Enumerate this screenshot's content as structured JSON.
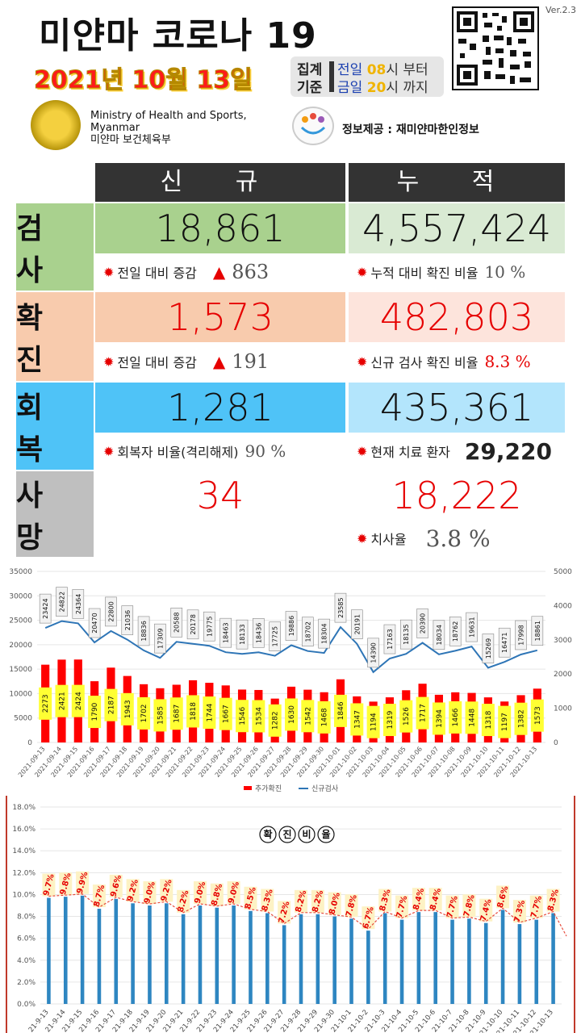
{
  "header": {
    "title": "미얀마 코로나 19",
    "date": "2021년 10월 13일",
    "basis_label_1": "집계",
    "basis_label_2": "기준",
    "basis_prev_label": "전일",
    "basis_prev_hour": "08",
    "basis_prev_suffix": "시 부터",
    "basis_today_label": "금일",
    "basis_today_hour": "20",
    "basis_today_suffix": "시 까지",
    "version": "Ver.2.3",
    "ministry_line1": "Ministry of Health and Sports,",
    "ministry_line2": "Myanmar",
    "ministry_line3": "미얀마 보건체육부",
    "provider": "정보제공 : 재미얀마한인정보"
  },
  "stats": {
    "col_new": "신 규",
    "col_cumulative": "누 적",
    "tests": {
      "label": "검 사",
      "new": "18,861",
      "cumulative": "4,557,424",
      "new_note": "전일 대비 증감",
      "new_delta": "863",
      "cum_note": "누적 대비 확진 비율",
      "cum_value": "10 %"
    },
    "confirmed": {
      "label": "확 진",
      "new": "1,573",
      "cumulative": "482,803",
      "new_note": "전일 대비 증감",
      "new_delta": "191",
      "cum_note": "신규 검사 확진 비율",
      "cum_value": "8.3 %"
    },
    "recovered": {
      "label": "회 복",
      "new": "1,281",
      "cumulative": "435,361",
      "new_note": "회복자 비율(격리해제)",
      "new_value": "90 %",
      "cum_note": "현재 치료 환자",
      "cum_value": "29,220"
    },
    "deaths": {
      "label": "사 망",
      "new": "34",
      "cumulative": "18,222",
      "cum_note": "치사율",
      "cum_value": "3.8 %"
    },
    "colors": {
      "tests_label": "#a9d18e",
      "tests_new": "#a9d18e",
      "tests_cum": "#d9ead3",
      "confirmed_label": "#f8cbad",
      "confirmed_new": "#f8cbad",
      "confirmed_cum": "#fde4dc",
      "recovered_label": "#4fc3f7",
      "recovered_new": "#4fc3f7",
      "recovered_cum": "#b3e5fc",
      "deaths_label": "#bfbfbf",
      "red_text": "#e60000"
    }
  },
  "chart_data": [
    {
      "type": "bar",
      "categories": [
        "2021-09-13",
        "2021-09-14",
        "2021-09-15",
        "2021-09-16",
        "2021-09-17",
        "2021-09-18",
        "2021-09-19",
        "2021-09-20",
        "2021-09-21",
        "2021-09-22",
        "2021-09-23",
        "2021-09-24",
        "2021-09-25",
        "2021-09-26",
        "2021-09-27",
        "2021-09-28",
        "2021-09-29",
        "2021-09-30",
        "2021-10-01",
        "2021-10-02",
        "2021-10-03",
        "2021-10-04",
        "2021-10-05",
        "2021-10-06",
        "2021-10-07",
        "2021-10-08",
        "2021-10-09",
        "2021-10-10",
        "2021-10-11",
        "2021-10-12",
        "2021-10-13"
      ],
      "series": [
        {
          "name": "추가확진",
          "axis": "right",
          "type": "bar",
          "color": "#ff0000",
          "values": [
            2273,
            2421,
            2424,
            1790,
            2187,
            1943,
            1702,
            1585,
            1687,
            1818,
            1744,
            1667,
            1546,
            1534,
            1282,
            1630,
            1542,
            1468,
            1846,
            1347,
            1194,
            1319,
            1526,
            1717,
            1394,
            1466,
            1448,
            1318,
            1197,
            1382,
            1573
          ]
        },
        {
          "name": "신규검사",
          "axis": "left",
          "type": "line",
          "color": "#2e75b6",
          "values": [
            23424,
            24822,
            24364,
            20470,
            22800,
            21036,
            18836,
            17309,
            20588,
            20178,
            19775,
            18463,
            18133,
            18436,
            17725,
            19886,
            18702,
            18304,
            23585,
            20191,
            14390,
            17163,
            18135,
            20390,
            18034,
            18762,
            19631,
            15269,
            16471,
            17998,
            18861
          ]
        }
      ],
      "ylim_left": [
        0,
        35000
      ],
      "yticks_left": [
        0,
        5000,
        10000,
        15000,
        20000,
        25000,
        30000,
        35000
      ],
      "ylim_right": [
        0,
        5000
      ],
      "yticks_right": [
        0,
        1000,
        2000,
        3000,
        4000,
        5000
      ],
      "legend": "bottom"
    },
    {
      "type": "bar",
      "title": "확진비율",
      "categories": [
        "21-9-13",
        "21-9-14",
        "21-9-15",
        "21-9-16",
        "21-9-17",
        "21-9-18",
        "21-9-19",
        "21-9-20",
        "21-9-21",
        "21-9-22",
        "21-9-23",
        "21-9-24",
        "21-9-25",
        "21-9-26",
        "21-9-27",
        "21-9-28",
        "21-9-29",
        "21-9-30",
        "21-10-1",
        "21-10-2",
        "21-10-3",
        "21-10-4",
        "21-10-5",
        "21-10-6",
        "21-10-7",
        "21-10-8",
        "21-10-9",
        "21-10-10",
        "21-10-11",
        "21-10-12",
        "21-10-13"
      ],
      "values": [
        9.7,
        9.8,
        9.9,
        8.7,
        9.6,
        9.2,
        9.0,
        9.2,
        8.2,
        9.0,
        8.8,
        9.0,
        8.5,
        8.3,
        7.2,
        8.2,
        8.2,
        8.0,
        7.8,
        6.7,
        8.3,
        7.7,
        8.4,
        8.4,
        7.7,
        7.8,
        7.4,
        8.6,
        7.3,
        7.7,
        8.3
      ],
      "labels": [
        "9.7%",
        "9.8%",
        "9.9%",
        "8.7%",
        "9.6%",
        "9.2%",
        "9.0%",
        "9.2%",
        "8.2%",
        "9.0%",
        "8.8%",
        "9.0%",
        "8.5%",
        "8.3%",
        "7.2%",
        "8.2%",
        "8.2%",
        "8.0%",
        "7.8%",
        "6.7%",
        "8.3%",
        "7.7%",
        "8.4%",
        "8.4%",
        "7.7%",
        "7.8%",
        "7.4%",
        "8.6%",
        "7.3%",
        "7.7%",
        "8.3%"
      ],
      "ylim": [
        0,
        18
      ],
      "yticks": [
        "0.0%",
        "2.0%",
        "4.0%",
        "6.0%",
        "8.0%",
        "10.0%",
        "12.0%",
        "14.0%",
        "16.0%",
        "18.0%"
      ],
      "trendline": true
    }
  ]
}
